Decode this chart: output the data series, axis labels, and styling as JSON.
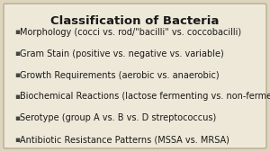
{
  "title": "Classification of Bacteria",
  "bullet_items": [
    "Morphology (cocci vs. rod/\"bacilli\" vs. coccobacilli)",
    "Gram Stain (positive vs. negative vs. variable)",
    "Growth Requirements (aerobic vs. anaerobic)",
    "Biochemical Reactions (lactose fermenting vs. non-fermenting)",
    "Serotype (group A vs. B vs. D streptococcus)",
    "Antibiotic Resistance Patterns (MSSA vs. MRSA)"
  ],
  "background_color": "#ede8d8",
  "title_fontsize": 9.5,
  "item_fontsize": 7.0,
  "title_color": "#1a1a1a",
  "text_color": "#1a1a1a",
  "bullet_color": "#444444",
  "border_color": "#b8aa90",
  "outer_bg": "#ddd5be"
}
